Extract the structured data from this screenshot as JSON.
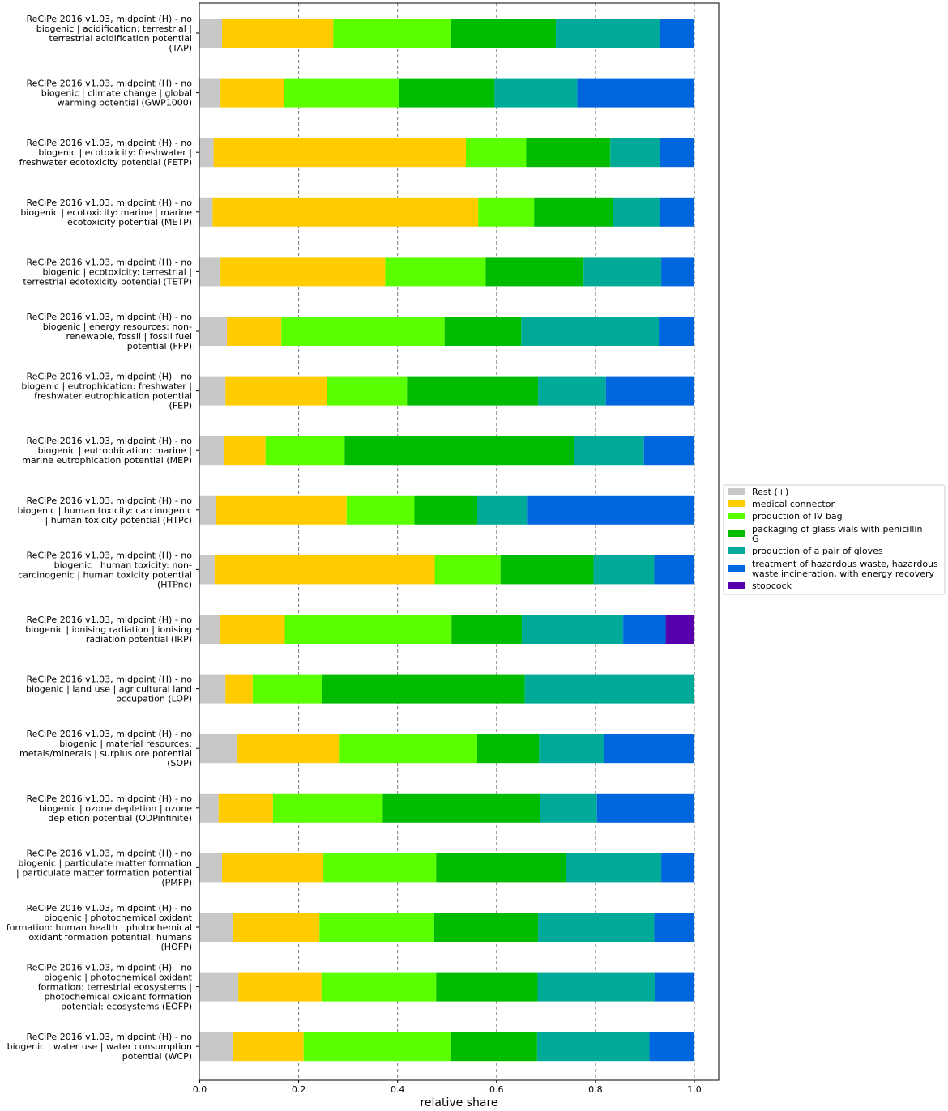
{
  "chart_data": {
    "type": "bar",
    "orientation": "horizontal",
    "stacked": true,
    "xlabel": "relative share",
    "ylabel": "",
    "xlim": [
      0,
      1.05
    ],
    "xticks": [
      "0.0",
      "0.2",
      "0.4",
      "0.6",
      "0.8",
      "1.0"
    ],
    "grid": "vertical dashed",
    "legend_position": "right",
    "categories": [
      "ReCiPe 2016 v1.03, midpoint (H) - no\nbiogenic | acidification: terrestrial |\nterrestrial acidification potential\n(TAP)",
      "ReCiPe 2016 v1.03, midpoint (H) - no\nbiogenic | climate change | global\nwarming potential (GWP1000)",
      "ReCiPe 2016 v1.03, midpoint (H) - no\nbiogenic | ecotoxicity: freshwater |\nfreshwater ecotoxicity potential (FETP)",
      "ReCiPe 2016 v1.03, midpoint (H) - no\nbiogenic | ecotoxicity: marine | marine\necotoxicity potential (METP)",
      "ReCiPe 2016 v1.03, midpoint (H) - no\nbiogenic | ecotoxicity: terrestrial |\nterrestrial ecotoxicity potential (TETP)",
      "ReCiPe 2016 v1.03, midpoint (H) - no\nbiogenic | energy resources: non-\nrenewable, fossil | fossil fuel\npotential (FFP)",
      "ReCiPe 2016 v1.03, midpoint (H) - no\nbiogenic | eutrophication: freshwater |\nfreshwater eutrophication potential\n(FEP)",
      "ReCiPe 2016 v1.03, midpoint (H) - no\nbiogenic | eutrophication: marine |\nmarine eutrophication potential (MEP)",
      "ReCiPe 2016 v1.03, midpoint (H) - no\nbiogenic | human toxicity: carcinogenic\n| human toxicity potential (HTPc)",
      "ReCiPe 2016 v1.03, midpoint (H) - no\nbiogenic | human toxicity: non-\ncarcinogenic | human toxicity potential\n(HTPnc)",
      "ReCiPe 2016 v1.03, midpoint (H) - no\nbiogenic | ionising radiation | ionising\nradiation potential (IRP)",
      "ReCiPe 2016 v1.03, midpoint (H) - no\nbiogenic | land use | agricultural land\noccupation (LOP)",
      "ReCiPe 2016 v1.03, midpoint (H) - no\nbiogenic | material resources:\nmetals/minerals | surplus ore potential\n(SOP)",
      "ReCiPe 2016 v1.03, midpoint (H) - no\nbiogenic | ozone depletion | ozone\ndepletion potential (ODPinfinite)",
      "ReCiPe 2016 v1.03, midpoint (H) - no\nbiogenic | particulate matter formation\n| particulate matter formation potential\n(PMFP)",
      "ReCiPe 2016 v1.03, midpoint (H) - no\nbiogenic | photochemical oxidant\nformation: human health | photochemical\noxidant formation potential: humans\n(HOFP)",
      "ReCiPe 2016 v1.03, midpoint (H) - no\nbiogenic | photochemical oxidant\nformation: terrestrial ecosystems |\nphotochemical oxidant formation\npotential: ecosystems (EOFP)",
      "ReCiPe 2016 v1.03, midpoint (H) - no\nbiogenic | water use | water consumption\npotential (WCP)"
    ],
    "series": [
      {
        "name": "Rest (+)",
        "color": "#c8c8c8",
        "values": [
          0.045,
          0.042,
          0.028,
          0.026,
          0.042,
          0.055,
          0.052,
          0.05,
          0.032,
          0.03,
          0.04,
          0.052,
          0.075,
          0.038,
          0.045,
          0.067,
          0.078,
          0.067
        ]
      },
      {
        "name": "medical connector",
        "color": "#ffcc00",
        "values": [
          0.225,
          0.128,
          0.51,
          0.537,
          0.333,
          0.11,
          0.205,
          0.083,
          0.265,
          0.445,
          0.132,
          0.055,
          0.208,
          0.11,
          0.205,
          0.175,
          0.168,
          0.143
        ]
      },
      {
        "name": "production of IV bag",
        "color": "#5aff00",
        "values": [
          0.238,
          0.233,
          0.122,
          0.113,
          0.203,
          0.33,
          0.162,
          0.16,
          0.137,
          0.133,
          0.337,
          0.14,
          0.278,
          0.222,
          0.228,
          0.232,
          0.232,
          0.297
        ]
      },
      {
        "name": "packaging of glass vials with penicillin G",
        "color": "#00bb00",
        "values": [
          0.212,
          0.193,
          0.17,
          0.16,
          0.198,
          0.155,
          0.265,
          0.463,
          0.127,
          0.188,
          0.142,
          0.41,
          0.125,
          0.318,
          0.262,
          0.21,
          0.205,
          0.175
        ]
      },
      {
        "name": "production of a pair of gloves",
        "color": "#00aa99",
        "values": [
          0.21,
          0.167,
          0.1,
          0.095,
          0.157,
          0.278,
          0.137,
          0.142,
          0.102,
          0.123,
          0.205,
          0.343,
          0.132,
          0.115,
          0.193,
          0.235,
          0.237,
          0.227
        ]
      },
      {
        "name": "treatment of hazardous waste, hazardous waste incineration, with energy recovery",
        "color": "#0066dd",
        "values": [
          0.07,
          0.237,
          0.07,
          0.069,
          0.067,
          0.072,
          0.179,
          0.102,
          0.337,
          0.081,
          0.086,
          0.0,
          0.182,
          0.197,
          0.067,
          0.081,
          0.08,
          0.091
        ]
      },
      {
        "name": "stopcock",
        "color": "#5500aa",
        "values": [
          0,
          0,
          0,
          0,
          0,
          0,
          0,
          0,
          0,
          0,
          0.058,
          0,
          0,
          0,
          0,
          0,
          0,
          0
        ]
      }
    ],
    "legend_labels": [
      [
        "Rest (+)"
      ],
      [
        "medical connector"
      ],
      [
        "production of IV bag"
      ],
      [
        "packaging of glass vials with penicillin",
        "G"
      ],
      [
        "production of a pair of gloves"
      ],
      [
        "treatment of hazardous waste, hazardous",
        "waste incineration, with energy recovery"
      ],
      [
        "stopcock"
      ]
    ]
  }
}
